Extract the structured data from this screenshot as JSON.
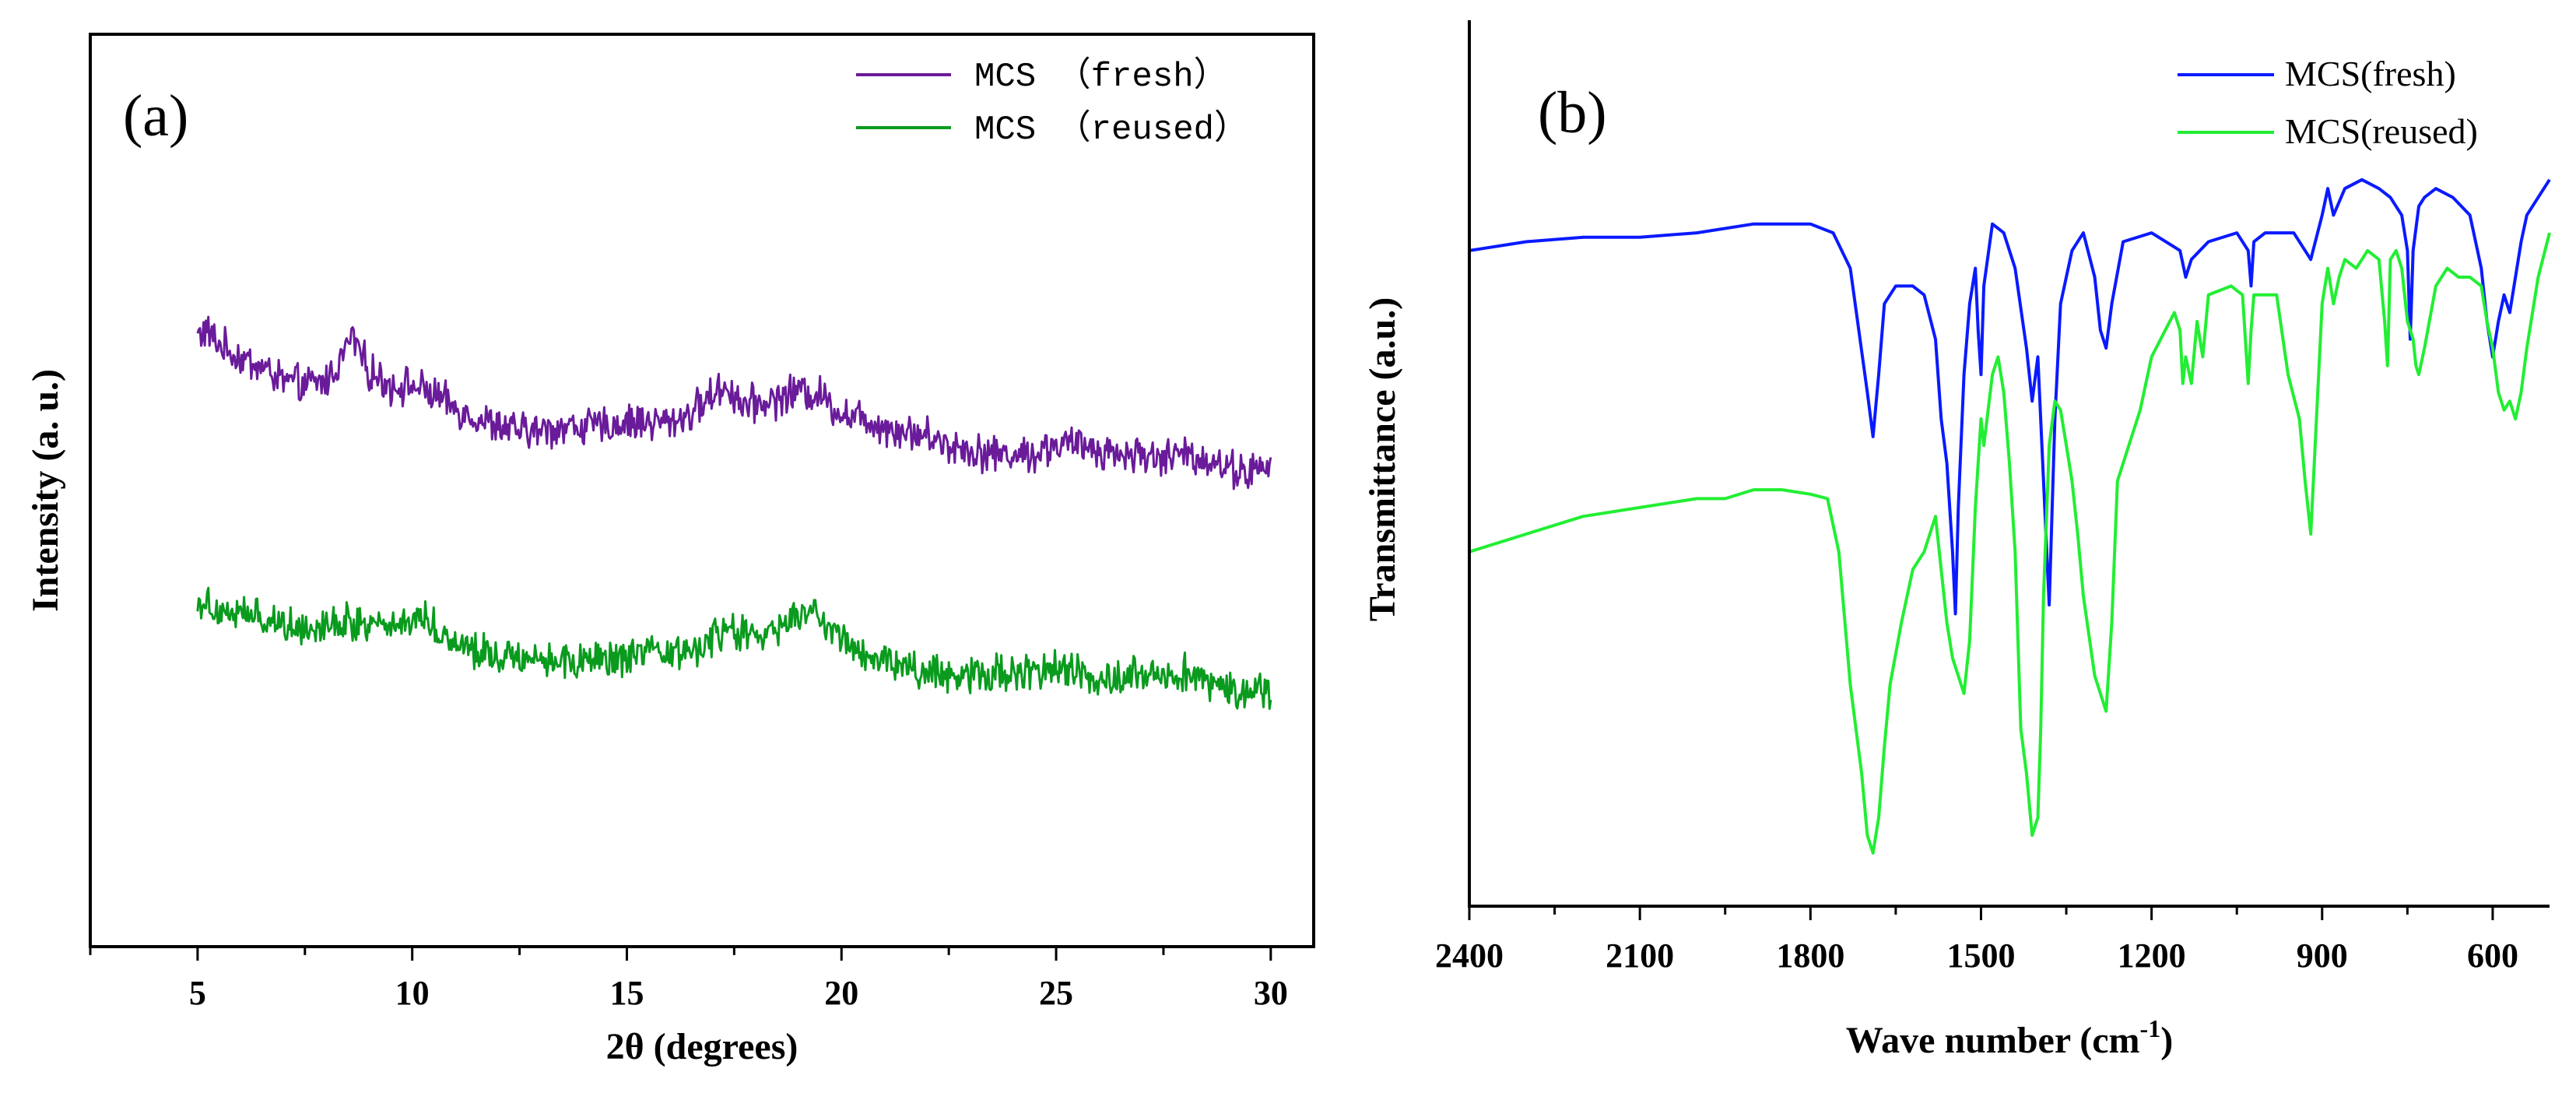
{
  "colors": {
    "fresh_a": "#6a1b9a",
    "reused_a": "#0a9b1e",
    "fresh_b": "#0a1aff",
    "reused_b": "#22ee33",
    "axis": "#000000"
  },
  "chart_data": [
    {
      "panel_label": "(a)",
      "type": "line",
      "xlabel": "2θ (degrees)",
      "ylabel": "Intensity (a. u.)",
      "xlim": [
        2.5,
        31
      ],
      "ylim": [
        0,
        100
      ],
      "xticks": [
        5,
        10,
        15,
        20,
        25,
        30
      ],
      "yticks_shown": false,
      "legend_position": "top-right",
      "series": [
        {
          "name": "MCS （fresh）",
          "x": [
            5,
            5.2,
            5.5,
            6,
            6.5,
            7,
            7.5,
            8,
            8.3,
            8.6,
            9,
            9.5,
            10,
            10.5,
            11,
            11.5,
            12,
            12.5,
            13,
            13.5,
            14,
            14.5,
            15,
            15.5,
            16,
            16.5,
            17,
            17.3,
            17.7,
            18,
            18.5,
            19,
            19.5,
            20,
            20.5,
            21,
            21.5,
            22,
            22.5,
            23,
            23.5,
            24,
            24.5,
            25,
            25.5,
            26,
            26.5,
            27,
            27.5,
            28,
            28.5,
            29,
            29.5,
            30
          ],
          "values": [
            67,
            67.5,
            66,
            64.5,
            63.5,
            62,
            61.5,
            62,
            64,
            67,
            63,
            61.5,
            61.5,
            60.5,
            59,
            58,
            57,
            56.5,
            56.5,
            57,
            57,
            57,
            57.5,
            57.5,
            57.5,
            58.5,
            60.5,
            61.5,
            59.5,
            59.5,
            60,
            61,
            60.5,
            58.5,
            58,
            57,
            56.5,
            56,
            55,
            54.5,
            54,
            54,
            54,
            55,
            55,
            54.5,
            54,
            54,
            53.5,
            54,
            53.5,
            52.5,
            52,
            52.5
          ]
        },
        {
          "name": "MCS （reused）",
          "x": [
            5,
            5.5,
            6,
            6.5,
            7,
            7.5,
            8,
            8.5,
            9,
            9.5,
            10,
            10.3,
            10.7,
            11,
            11.5,
            12,
            12.5,
            13,
            13.5,
            14,
            14.5,
            15,
            15.5,
            16,
            16.5,
            17,
            17.4,
            17.8,
            18,
            18.5,
            19,
            19.3,
            19.7,
            20,
            20.5,
            21,
            21.5,
            22,
            22.5,
            23,
            23.5,
            24,
            24.5,
            25,
            25.5,
            26,
            26.5,
            27,
            27.5,
            28,
            28.5,
            29,
            29.5,
            30
          ],
          "values": [
            38,
            37,
            36.5,
            36,
            35.5,
            35,
            35.5,
            35.5,
            35.5,
            35.5,
            35.5,
            36.5,
            34,
            33.5,
            32.5,
            32,
            32,
            31.5,
            31.5,
            31,
            31.5,
            31.5,
            32,
            32,
            32.5,
            33.5,
            35,
            34,
            34,
            34.5,
            36.5,
            36.5,
            35,
            34,
            32,
            31.5,
            30.5,
            30,
            30,
            30,
            30,
            30,
            30,
            30.5,
            30,
            29.5,
            29.5,
            30,
            30,
            30,
            29,
            28.5,
            28,
            28
          ]
        }
      ]
    },
    {
      "panel_label": "(b)",
      "type": "line",
      "xlabel": "Wave number (cm",
      "xlabel_sup": "-1",
      "xlabel_close": ")",
      "ylabel": "Transmittance (a.u.)",
      "xlim": [
        2400,
        500
      ],
      "ylim": [
        0,
        100
      ],
      "xticks": [
        2400,
        2100,
        1800,
        1500,
        1200,
        900,
        600
      ],
      "yticks_shown": false,
      "legend_position": "top-right",
      "series": [
        {
          "name": "MCS(fresh)",
          "x": [
            2400,
            2300,
            2200,
            2100,
            2000,
            1900,
            1800,
            1760,
            1730,
            1700,
            1690,
            1680,
            1670,
            1650,
            1620,
            1600,
            1580,
            1570,
            1560,
            1550,
            1545,
            1540,
            1530,
            1520,
            1510,
            1505,
            1500,
            1495,
            1480,
            1460,
            1440,
            1420,
            1410,
            1400,
            1390,
            1380,
            1370,
            1360,
            1340,
            1320,
            1300,
            1290,
            1280,
            1270,
            1250,
            1200,
            1150,
            1140,
            1130,
            1100,
            1050,
            1030,
            1025,
            1020,
            1000,
            950,
            920,
            900,
            890,
            880,
            860,
            830,
            800,
            780,
            760,
            750,
            745,
            740,
            730,
            720,
            700,
            670,
            640,
            620,
            610,
            600,
            590,
            580,
            570,
            560,
            550,
            540,
            520,
            500
          ],
          "values": [
            74,
            75,
            75.5,
            75.5,
            76,
            77,
            77,
            76,
            72,
            58,
            53,
            60,
            68,
            70,
            70,
            69,
            64,
            55,
            50,
            40,
            33,
            45,
            60,
            68,
            72,
            65,
            60,
            70,
            77,
            76,
            72,
            63,
            57,
            62,
            48,
            34,
            55,
            68,
            74,
            76,
            71,
            65,
            63,
            68,
            75,
            76,
            74,
            71,
            73,
            75,
            76,
            74,
            70,
            75,
            76,
            76,
            73,
            78,
            81,
            78,
            81,
            82,
            81,
            80,
            78,
            74,
            64,
            74,
            79,
            80,
            81,
            80,
            78,
            72,
            66,
            62,
            66,
            69,
            67,
            71,
            75,
            78,
            80,
            82
          ]
        },
        {
          "name": "MCS(reused)",
          "x": [
            2400,
            2300,
            2200,
            2100,
            2000,
            1950,
            1900,
            1850,
            1800,
            1770,
            1750,
            1730,
            1710,
            1700,
            1690,
            1680,
            1670,
            1660,
            1640,
            1620,
            1600,
            1580,
            1570,
            1560,
            1550,
            1540,
            1530,
            1520,
            1510,
            1505,
            1500,
            1495,
            1480,
            1470,
            1460,
            1450,
            1440,
            1430,
            1420,
            1410,
            1400,
            1395,
            1390,
            1380,
            1370,
            1360,
            1350,
            1340,
            1330,
            1320,
            1300,
            1290,
            1280,
            1270,
            1260,
            1240,
            1220,
            1200,
            1160,
            1150,
            1145,
            1140,
            1130,
            1120,
            1115,
            1110,
            1100,
            1060,
            1040,
            1030,
            1025,
            1020,
            1000,
            980,
            960,
            940,
            930,
            920,
            910,
            900,
            890,
            880,
            870,
            860,
            840,
            820,
            800,
            790,
            785,
            780,
            770,
            760,
            750,
            740,
            735,
            730,
            720,
            700,
            680,
            660,
            640,
            620,
            610,
            600,
            590,
            580,
            570,
            560,
            550,
            540,
            520,
            500
          ],
          "values": [
            40,
            42,
            44,
            45,
            46,
            46,
            47,
            47,
            46.5,
            46,
            40,
            25,
            15,
            8,
            6,
            10,
            18,
            25,
            32,
            38,
            40,
            44,
            38,
            32,
            28,
            26,
            24,
            30,
            45,
            50,
            55,
            52,
            60,
            62,
            58,
            50,
            40,
            20,
            15,
            8,
            10,
            20,
            35,
            52,
            57,
            56,
            52,
            48,
            42,
            35,
            26,
            24,
            22,
            32,
            48,
            52,
            56,
            62,
            67,
            65,
            59,
            62,
            59,
            66,
            64,
            62,
            69,
            70,
            69,
            59,
            65,
            69,
            69,
            69,
            60,
            55,
            48,
            42,
            55,
            68,
            72,
            68,
            71,
            73,
            72,
            74,
            73,
            66,
            61,
            73,
            74,
            72,
            66,
            64,
            61,
            60,
            63,
            70,
            72,
            71,
            71,
            70,
            66,
            63,
            58,
            56,
            57,
            55,
            58,
            63,
            71,
            76
          ]
        }
      ]
    }
  ]
}
